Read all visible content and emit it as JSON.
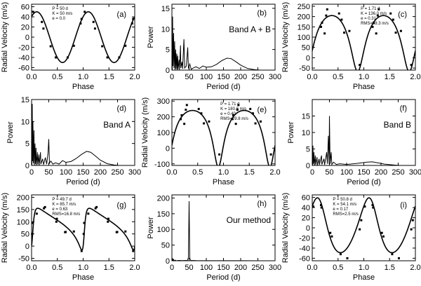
{
  "chart_data": [
    {
      "id": "a",
      "type": "line",
      "xlabel": "Phase",
      "ylabel": "Radial Velocity (m/s)",
      "xlim": [
        0,
        2
      ],
      "ylim": [
        -65,
        65
      ],
      "xticks": [
        0,
        0.5,
        1,
        1.5,
        2
      ],
      "xticklabels": [
        "0.0",
        "0.5",
        "1.0",
        "1.5",
        "2.0"
      ],
      "yticks": [
        -60,
        -40,
        -20,
        0,
        20,
        40,
        60
      ],
      "yticklabels": [
        "-60",
        "-40",
        "-20",
        "0",
        "20",
        "40",
        "60"
      ],
      "tag": "(a)",
      "params": [
        "P = 50 d",
        "K = 50 m/s",
        "e = 0.0"
      ],
      "model": {
        "K": 50,
        "e": 0,
        "omega": 0,
        "gamma": 0,
        "peak_phase": 0.1
      },
      "points": [
        [
          0.03,
          50
        ],
        [
          0.2,
          30
        ],
        [
          0.23,
          17
        ],
        [
          0.37,
          -18
        ],
        [
          0.47,
          -40
        ],
        [
          0.7,
          -40
        ],
        [
          0.82,
          -17
        ],
        [
          0.95,
          27
        ],
        [
          0.97,
          36
        ]
      ]
    },
    {
      "id": "b",
      "type": "line",
      "xlabel": "Period (d)",
      "ylabel": "Power",
      "xlim": [
        0,
        300
      ],
      "ylim": [
        0,
        16
      ],
      "xticks": [
        0,
        50,
        100,
        150,
        200,
        250,
        300
      ],
      "xticklabels": [
        "0",
        "50",
        "100",
        "150",
        "200",
        "250",
        "300"
      ],
      "yticks": [
        0,
        5,
        10,
        15
      ],
      "yticklabels": [
        "0",
        "5",
        "10",
        "15"
      ],
      "tag": "(b)",
      "band": "Band A + B",
      "spectrum": [
        [
          1,
          0
        ],
        [
          2,
          13
        ],
        [
          3,
          1
        ],
        [
          5,
          9
        ],
        [
          6,
          0.5
        ],
        [
          8,
          7
        ],
        [
          9,
          0
        ],
        [
          11,
          5
        ],
        [
          12,
          0.3
        ],
        [
          14,
          4
        ],
        [
          15,
          0
        ],
        [
          17,
          3.5
        ],
        [
          18,
          0.2
        ],
        [
          21,
          2.5
        ],
        [
          22,
          0
        ],
        [
          25,
          6
        ],
        [
          26,
          0.5
        ],
        [
          29,
          2
        ],
        [
          31,
          0.3
        ],
        [
          35,
          7.5
        ],
        [
          37,
          0.5
        ],
        [
          42,
          1
        ],
        [
          46,
          5.5
        ],
        [
          48,
          0.4
        ],
        [
          52,
          1.5
        ],
        [
          56,
          0.2
        ],
        [
          62,
          0.5
        ],
        [
          70,
          0.8
        ],
        [
          80,
          0.4
        ],
        [
          90,
          1
        ],
        [
          100,
          0.7
        ],
        [
          115,
          0.8
        ],
        [
          130,
          1.4
        ],
        [
          145,
          2.3
        ],
        [
          160,
          2.9
        ],
        [
          172,
          2.8
        ],
        [
          185,
          2.1
        ],
        [
          200,
          1.2
        ],
        [
          220,
          0.4
        ],
        [
          240,
          0.1
        ],
        [
          255,
          0
        ]
      ]
    },
    {
      "id": "c",
      "type": "line",
      "xlabel": "Phase",
      "ylabel": "Radial Velocity (m/s)",
      "xlim": [
        0,
        2
      ],
      "ylim": [
        -60,
        260
      ],
      "xticks": [
        0,
        0.5,
        1,
        1.5,
        2
      ],
      "xticklabels": [
        "0.0",
        "0.5",
        "1.0",
        "1.5",
        "2.0"
      ],
      "yticks": [
        -50,
        0,
        50,
        100,
        150,
        200,
        250
      ],
      "yticklabels": [
        "-50",
        "0",
        "50",
        "100",
        "150",
        "200",
        "250"
      ],
      "tag": "(c)",
      "params": [
        "P = 1.71 d",
        "K = 136.0 m/s",
        "e = 0.31",
        "RMS=28.3 m/s"
      ],
      "model": {
        "K": 136,
        "e": 0.31,
        "omega": 3.14159,
        "gamma": 111,
        "peak_phase": 0.38
      },
      "points": [
        [
          0.17,
          150
        ],
        [
          0.19,
          170
        ],
        [
          0.24,
          118
        ],
        [
          0.27,
          205
        ],
        [
          0.29,
          235
        ],
        [
          0.52,
          215
        ],
        [
          0.57,
          185
        ],
        [
          0.62,
          122
        ],
        [
          0.72,
          130
        ],
        [
          0.92,
          -35
        ]
      ]
    },
    {
      "id": "d",
      "type": "line",
      "xlabel": "Period (d)",
      "ylabel": "Power",
      "xlim": [
        0,
        300
      ],
      "ylim": [
        0,
        15
      ],
      "xticks": [
        0,
        50,
        100,
        150,
        200,
        250,
        300
      ],
      "xticklabels": [
        "0",
        "50",
        "100",
        "150",
        "200",
        "250",
        "300"
      ],
      "yticks": [
        0,
        5,
        10,
        15
      ],
      "yticklabels": [
        "0",
        "5",
        "10",
        "15"
      ],
      "tag": "(d)",
      "band": "Band A",
      "spectrum": [
        [
          1,
          0
        ],
        [
          2,
          14
        ],
        [
          3,
          1
        ],
        [
          4,
          10
        ],
        [
          5,
          0.5
        ],
        [
          7,
          8
        ],
        [
          8,
          0
        ],
        [
          10,
          5
        ],
        [
          11,
          0.3
        ],
        [
          13,
          4
        ],
        [
          14,
          0
        ],
        [
          17,
          3
        ],
        [
          18,
          0.2
        ],
        [
          21,
          2.5
        ],
        [
          22,
          0
        ],
        [
          26,
          3
        ],
        [
          27,
          0.3
        ],
        [
          32,
          1.5
        ],
        [
          35,
          0.2
        ],
        [
          40,
          1.8
        ],
        [
          44,
          0.3
        ],
        [
          48,
          3
        ],
        [
          50,
          6
        ],
        [
          52,
          0.5
        ],
        [
          56,
          1
        ],
        [
          62,
          0.3
        ],
        [
          70,
          0.6
        ],
        [
          80,
          0.3
        ],
        [
          90,
          1.1
        ],
        [
          100,
          0.7
        ],
        [
          115,
          0.9
        ],
        [
          130,
          1.6
        ],
        [
          145,
          2.5
        ],
        [
          160,
          3.2
        ],
        [
          172,
          3
        ],
        [
          185,
          2.2
        ],
        [
          200,
          1.2
        ],
        [
          220,
          0.4
        ],
        [
          240,
          0.1
        ],
        [
          255,
          0
        ]
      ]
    },
    {
      "id": "e",
      "type": "line",
      "xlabel": "Phase",
      "ylabel": "Radial Velocity (m/s)",
      "xlim": [
        0,
        2
      ],
      "ylim": [
        -110,
        310
      ],
      "xticks": [
        0,
        0.5,
        1,
        1.5,
        2
      ],
      "xticklabels": [
        "0.0",
        "0.5",
        "1.0",
        "1.5",
        "2.0"
      ],
      "yticks": [
        -100,
        0,
        100,
        200,
        300
      ],
      "yticklabels": [
        "-100",
        "0",
        "100",
        "200",
        "300"
      ],
      "tag": "(e)",
      "params": [
        "P = 1.71 d",
        "K = 180.6 m/s",
        "e = 0.40",
        "RMS=29.8 m/s"
      ],
      "model": {
        "K": 180.6,
        "e": 0.4,
        "omega": 3.14159,
        "gamma": 132,
        "peak_phase": 0.4
      },
      "points": [
        [
          0.17,
          185
        ],
        [
          0.19,
          210
        ],
        [
          0.24,
          155
        ],
        [
          0.27,
          245
        ],
        [
          0.29,
          275
        ],
        [
          0.52,
          250
        ],
        [
          0.57,
          222
        ],
        [
          0.62,
          158
        ],
        [
          0.72,
          170
        ],
        [
          0.92,
          -40
        ]
      ]
    },
    {
      "id": "f",
      "type": "line",
      "xlabel": "Period (d)",
      "ylabel": "Power",
      "xlim": [
        0,
        300
      ],
      "ylim": [
        0,
        20
      ],
      "xticks": [
        0,
        50,
        100,
        150,
        200,
        250,
        300
      ],
      "xticklabels": [
        "0",
        "50",
        "100",
        "150",
        "200",
        "250",
        "300"
      ],
      "yticks": [
        0,
        5,
        10,
        15
      ],
      "yticklabels": [
        "0",
        "5",
        "10",
        "15"
      ],
      "tag": "(f)",
      "band": "Band B",
      "spectrum": [
        [
          1,
          0
        ],
        [
          2,
          6
        ],
        [
          3,
          0.5
        ],
        [
          5,
          4
        ],
        [
          6,
          0
        ],
        [
          9,
          3
        ],
        [
          10,
          0.2
        ],
        [
          14,
          2.5
        ],
        [
          15,
          0
        ],
        [
          20,
          2
        ],
        [
          21,
          0.2
        ],
        [
          27,
          3
        ],
        [
          28,
          0.3
        ],
        [
          34,
          2
        ],
        [
          36,
          0.2
        ],
        [
          42,
          4
        ],
        [
          44,
          0.5
        ],
        [
          47,
          9
        ],
        [
          49,
          0.5
        ],
        [
          50,
          15
        ],
        [
          52,
          0.5
        ],
        [
          55,
          4
        ],
        [
          57,
          0.3
        ],
        [
          62,
          1
        ],
        [
          70,
          0.3
        ],
        [
          80,
          0.5
        ],
        [
          100,
          0.3
        ],
        [
          130,
          0.6
        ],
        [
          160,
          1
        ],
        [
          175,
          1.1
        ],
        [
          190,
          0.8
        ],
        [
          210,
          0.4
        ],
        [
          240,
          0.1
        ],
        [
          255,
          0
        ]
      ]
    },
    {
      "id": "g",
      "type": "line",
      "xlabel": "Phase",
      "ylabel": "Radial Velocity (m/s)",
      "xlim": [
        0,
        2
      ],
      "ylim": [
        -60,
        210
      ],
      "xticks": [
        0,
        0.5,
        1,
        1.5,
        2
      ],
      "xticklabels": [
        "0.0",
        "0.5",
        "1.0",
        "1.5",
        "2.0"
      ],
      "yticks": [
        -50,
        0,
        50,
        100,
        150,
        200
      ],
      "yticklabels": [
        "-50",
        "0",
        "50",
        "100",
        "150",
        "200"
      ],
      "tag": "(g)",
      "params": [
        "P = 49.7 d",
        "K = 85.7 m/s",
        "e = 0.63",
        "RMS=16.8 m/s"
      ],
      "model": {
        "K": 85.7,
        "e": 0.63,
        "omega": 4.3,
        "gamma": 91,
        "peak_phase": 0.12
      },
      "points": [
        [
          0.01,
          50
        ],
        [
          0.02,
          95
        ],
        [
          0.1,
          133
        ],
        [
          0.24,
          155
        ],
        [
          0.26,
          160
        ],
        [
          0.48,
          100
        ],
        [
          0.49,
          112
        ],
        [
          0.65,
          57
        ],
        [
          0.66,
          58
        ],
        [
          0.82,
          60
        ],
        [
          0.97,
          -20
        ]
      ]
    },
    {
      "id": "h",
      "type": "line",
      "xlabel": "Period (d)",
      "ylabel": "Power",
      "xlim": [
        0,
        300
      ],
      "ylim": [
        0,
        210
      ],
      "xticks": [
        0,
        50,
        100,
        150,
        200,
        250,
        300
      ],
      "xticklabels": [
        "0",
        "50",
        "100",
        "150",
        "200",
        "250",
        "300"
      ],
      "yticks": [
        0,
        50,
        100,
        150,
        200
      ],
      "yticklabels": [
        "0",
        "50",
        "100",
        "150",
        "200"
      ],
      "tag": "(h)",
      "band": "Our method",
      "spectrum": [
        [
          1,
          0
        ],
        [
          2,
          8
        ],
        [
          3,
          1
        ],
        [
          5,
          4
        ],
        [
          6,
          0
        ],
        [
          10,
          2
        ],
        [
          12,
          0
        ],
        [
          20,
          1
        ],
        [
          30,
          0.5
        ],
        [
          45,
          1
        ],
        [
          48,
          10
        ],
        [
          50,
          190
        ],
        [
          52,
          8
        ],
        [
          55,
          1
        ],
        [
          70,
          0.5
        ],
        [
          100,
          0.3
        ],
        [
          150,
          0.4
        ],
        [
          200,
          0.2
        ],
        [
          255,
          0
        ]
      ]
    },
    {
      "id": "i",
      "type": "line",
      "xlabel": "Phase",
      "ylabel": "Radial Velocity (m/s)",
      "xlim": [
        0,
        2
      ],
      "ylim": [
        -65,
        65
      ],
      "xticks": [
        0,
        0.5,
        1,
        1.5,
        2
      ],
      "xticklabels": [
        "0.0",
        "0.5",
        "1.0",
        "1.5",
        "2.0"
      ],
      "yticks": [
        -60,
        -40,
        -20,
        0,
        20,
        40,
        60
      ],
      "yticklabels": [
        "-60",
        "-40",
        "-20",
        "0",
        "20",
        "40",
        "60"
      ],
      "tag": "(i)",
      "params": [
        "P = 50.8 d",
        "K = 54.1 m/s",
        "e = 0.17",
        "RMS=2.5 m/s"
      ],
      "model": {
        "K": 54.1,
        "e": 0.17,
        "omega": 0.5,
        "gamma": -3,
        "peak_phase": 0.1
      },
      "points": [
        [
          0.02,
          42
        ],
        [
          0.17,
          45
        ],
        [
          0.18,
          40
        ],
        [
          0.35,
          -10
        ],
        [
          0.38,
          -17
        ],
        [
          0.55,
          -52
        ],
        [
          0.68,
          -60
        ],
        [
          0.92,
          -3
        ],
        [
          0.95,
          15
        ]
      ]
    }
  ]
}
